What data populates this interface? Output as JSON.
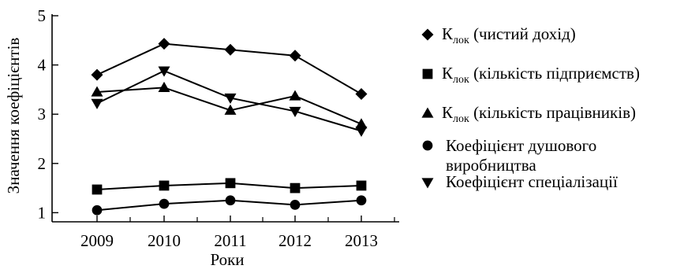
{
  "chart_data": {
    "type": "line",
    "xlabel": "Роки",
    "ylabel": "Значення коефіцієнтів",
    "categories": [
      "2009",
      "2010",
      "2011",
      "2012",
      "2013"
    ],
    "yticks": [
      "1",
      "2",
      "3",
      "4",
      "5"
    ],
    "ylim": [
      1,
      5
    ],
    "grid": false,
    "legend_position": "right",
    "line_color": "#000000",
    "series": [
      {
        "name_main": "К",
        "name_sub": "лок",
        "name_rest": " (чистий дохід)",
        "marker": "diamond",
        "values": [
          3.8,
          4.43,
          4.31,
          4.19,
          3.41
        ]
      },
      {
        "name_main": "К",
        "name_sub": "лок",
        "name_rest": " (кількість підприємств)",
        "marker": "square",
        "values": [
          1.47,
          1.55,
          1.6,
          1.5,
          1.55
        ]
      },
      {
        "name_main": "К",
        "name_sub": "лок",
        "name_rest": " (кількість працівників)",
        "marker": "triangle-up",
        "values": [
          3.45,
          3.54,
          3.08,
          3.37,
          2.8
        ]
      },
      {
        "name_lines": [
          "Коефіцієнт душового",
          "виробництва"
        ],
        "marker": "circle",
        "values": [
          1.05,
          1.18,
          1.25,
          1.16,
          1.25
        ]
      },
      {
        "name_lines": [
          "Коефіцієнт спеціалізації"
        ],
        "marker": "triangle-down",
        "values": [
          3.22,
          3.88,
          3.33,
          3.06,
          2.66
        ]
      }
    ]
  }
}
